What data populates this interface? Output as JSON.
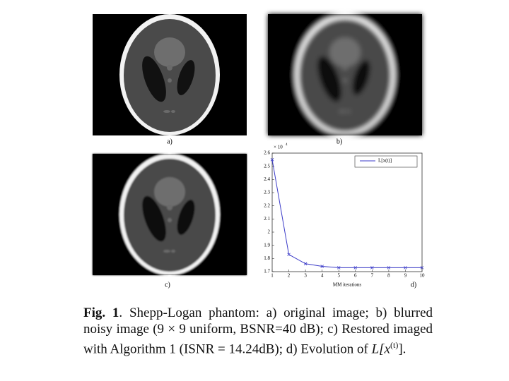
{
  "panels": {
    "a": "a)",
    "b": "b)",
    "c": "c)",
    "d": "d)"
  },
  "chart_data": {
    "type": "line",
    "x": [
      1,
      2,
      3,
      4,
      5,
      6,
      7,
      8,
      9,
      10
    ],
    "series": [
      {
        "name": "L[x(t)]",
        "color": "#3b3bc8",
        "values": [
          2.55,
          1.83,
          1.76,
          1.74,
          1.73,
          1.73,
          1.73,
          1.73,
          1.73,
          1.73
        ]
      }
    ],
    "xlim": [
      1,
      10
    ],
    "xticks": [
      1,
      2,
      3,
      4,
      5,
      6,
      7,
      8,
      9,
      10
    ],
    "ylim": [
      1.7,
      2.6
    ],
    "yticks": [
      1.7,
      1.8,
      1.9,
      2,
      2.1,
      2.2,
      2.3,
      2.4,
      2.5,
      2.6
    ],
    "xlabel": "MM iterations",
    "y_scale": "× 10",
    "y_scale_exponent": "4",
    "legend": "upper right"
  },
  "caption": {
    "label": "Fig. 1",
    "text": ". Shepp-Logan phantom: a) original image; b) blurred noisy image (9 × 9 uniform, BSNR=40 dB); c) Restored imaged with Algorithm 1 (ISNR = 14.24dB); d) Evolution of ",
    "math": "L[x",
    "math_sup": "(t)",
    "end": "]."
  }
}
